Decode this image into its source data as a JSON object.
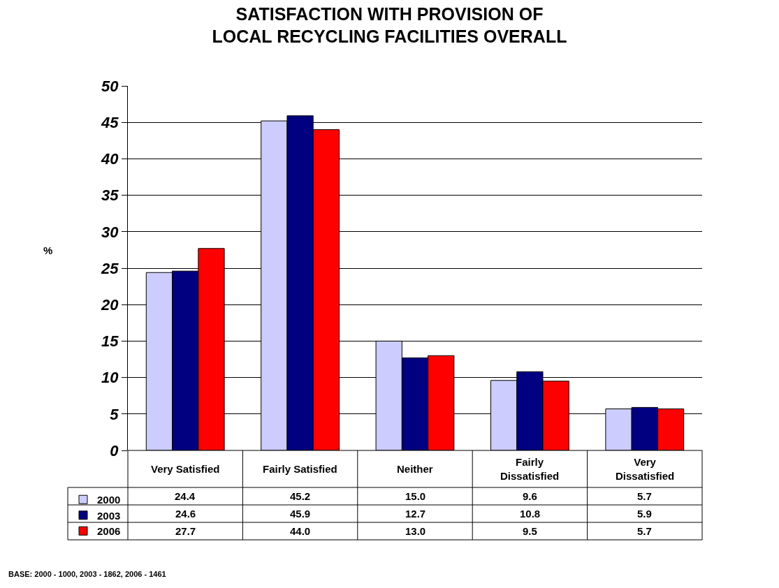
{
  "chart_data": {
    "type": "bar",
    "title": "SATISFACTION WITH PROVISION OF LOCAL RECYCLING FACILITIES OVERALL",
    "ylabel": "%",
    "categories": [
      "Very Satisfied",
      "Fairly Satisfied",
      "Neither",
      "Fairly Dissatisfied",
      "Very Dissatisfied"
    ],
    "series": [
      {
        "name": "2000",
        "color": "#ccccff",
        "values": [
          24.4,
          45.2,
          15.0,
          9.6,
          5.7
        ],
        "value_labels": [
          "24.4",
          "45.2",
          "15.0",
          "9.6",
          "5.7"
        ]
      },
      {
        "name": "2003",
        "color": "#000080",
        "values": [
          24.6,
          45.9,
          12.7,
          10.8,
          5.9
        ],
        "value_labels": [
          "24.6",
          "45.9",
          "12.7",
          "10.8",
          "5.9"
        ]
      },
      {
        "name": "2006",
        "color": "#ff0000",
        "values": [
          27.7,
          44.0,
          13.0,
          9.5,
          5.7
        ],
        "value_labels": [
          "27.7",
          "44.0",
          "13.0",
          "9.5",
          "5.7"
        ]
      }
    ],
    "ylim": [
      0,
      50
    ],
    "yticks": [
      0,
      5,
      10,
      15,
      20,
      25,
      30,
      35,
      40,
      45,
      50
    ],
    "grid": "y",
    "legend": "bottom left",
    "annotations": [
      "BASE: 2000 - 1000, 2003 - 1862, 2006 - 1461"
    ]
  }
}
